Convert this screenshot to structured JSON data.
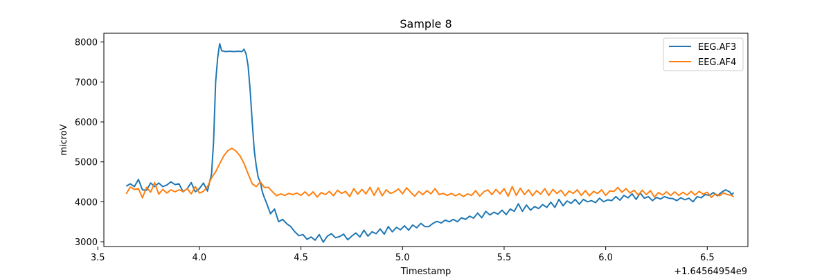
{
  "chart_data": {
    "type": "line",
    "title": "Sample 8",
    "xlabel": "Timestamp",
    "ylabel": "microV",
    "x_offset_label": "+1.64564954e9",
    "xlim": [
      3.53,
      6.7
    ],
    "ylim": [
      2880,
      8220
    ],
    "x_ticks": [
      3.5,
      4.0,
      4.5,
      5.0,
      5.5,
      6.0,
      6.5
    ],
    "x_tick_labels": [
      "3.5",
      "4.0",
      "4.5",
      "5.0",
      "5.5",
      "6.0",
      "6.5"
    ],
    "y_ticks": [
      3000,
      4000,
      5000,
      6000,
      7000,
      8000
    ],
    "y_tick_labels": [
      "3000",
      "4000",
      "5000",
      "6000",
      "7000",
      "8000"
    ],
    "grid": false,
    "legend_position": "upper right",
    "series": [
      {
        "name": "EEG.AF3",
        "color": "#1f77b4",
        "points": [
          [
            3.64,
            4390
          ],
          [
            3.66,
            4450
          ],
          [
            3.68,
            4380
          ],
          [
            3.7,
            4560
          ],
          [
            3.72,
            4300
          ],
          [
            3.74,
            4290
          ],
          [
            3.76,
            4470
          ],
          [
            3.78,
            4380
          ],
          [
            3.8,
            4470
          ],
          [
            3.82,
            4380
          ],
          [
            3.84,
            4420
          ],
          [
            3.86,
            4500
          ],
          [
            3.88,
            4430
          ],
          [
            3.9,
            4450
          ],
          [
            3.92,
            4250
          ],
          [
            3.94,
            4330
          ],
          [
            3.96,
            4480
          ],
          [
            3.98,
            4250
          ],
          [
            4.0,
            4330
          ],
          [
            4.02,
            4470
          ],
          [
            4.04,
            4270
          ],
          [
            4.06,
            4700
          ],
          [
            4.07,
            5500
          ],
          [
            4.08,
            7000
          ],
          [
            4.09,
            7600
          ],
          [
            4.1,
            7960
          ],
          [
            4.11,
            7780
          ],
          [
            4.13,
            7760
          ],
          [
            4.15,
            7770
          ],
          [
            4.17,
            7760
          ],
          [
            4.19,
            7770
          ],
          [
            4.21,
            7760
          ],
          [
            4.22,
            7820
          ],
          [
            4.23,
            7700
          ],
          [
            4.24,
            7400
          ],
          [
            4.25,
            6800
          ],
          [
            4.26,
            6000
          ],
          [
            4.27,
            5300
          ],
          [
            4.28,
            4900
          ],
          [
            4.29,
            4600
          ],
          [
            4.3,
            4500
          ],
          [
            4.31,
            4250
          ],
          [
            4.32,
            4100
          ],
          [
            4.33,
            3980
          ],
          [
            4.35,
            3700
          ],
          [
            4.37,
            3820
          ],
          [
            4.39,
            3500
          ],
          [
            4.41,
            3560
          ],
          [
            4.43,
            3450
          ],
          [
            4.45,
            3380
          ],
          [
            4.47,
            3250
          ],
          [
            4.49,
            3150
          ],
          [
            4.51,
            3180
          ],
          [
            4.53,
            3060
          ],
          [
            4.55,
            3120
          ],
          [
            4.57,
            3040
          ],
          [
            4.59,
            3180
          ],
          [
            4.61,
            2990
          ],
          [
            4.63,
            3140
          ],
          [
            4.65,
            3200
          ],
          [
            4.67,
            3100
          ],
          [
            4.69,
            3130
          ],
          [
            4.71,
            3190
          ],
          [
            4.73,
            3050
          ],
          [
            4.75,
            3140
          ],
          [
            4.77,
            3220
          ],
          [
            4.79,
            3120
          ],
          [
            4.81,
            3290
          ],
          [
            4.83,
            3140
          ],
          [
            4.85,
            3250
          ],
          [
            4.87,
            3200
          ],
          [
            4.89,
            3320
          ],
          [
            4.91,
            3190
          ],
          [
            4.93,
            3380
          ],
          [
            4.95,
            3250
          ],
          [
            4.97,
            3360
          ],
          [
            4.99,
            3300
          ],
          [
            5.01,
            3400
          ],
          [
            5.03,
            3290
          ],
          [
            5.05,
            3420
          ],
          [
            5.07,
            3350
          ],
          [
            5.09,
            3460
          ],
          [
            5.11,
            3380
          ],
          [
            5.13,
            3380
          ],
          [
            5.15,
            3460
          ],
          [
            5.17,
            3510
          ],
          [
            5.19,
            3470
          ],
          [
            5.21,
            3540
          ],
          [
            5.23,
            3500
          ],
          [
            5.25,
            3560
          ],
          [
            5.27,
            3500
          ],
          [
            5.29,
            3600
          ],
          [
            5.31,
            3560
          ],
          [
            5.33,
            3640
          ],
          [
            5.35,
            3590
          ],
          [
            5.37,
            3720
          ],
          [
            5.39,
            3600
          ],
          [
            5.41,
            3760
          ],
          [
            5.43,
            3670
          ],
          [
            5.45,
            3740
          ],
          [
            5.47,
            3690
          ],
          [
            5.49,
            3790
          ],
          [
            5.51,
            3680
          ],
          [
            5.53,
            3820
          ],
          [
            5.55,
            3760
          ],
          [
            5.57,
            3950
          ],
          [
            5.59,
            3760
          ],
          [
            5.61,
            3920
          ],
          [
            5.63,
            3790
          ],
          [
            5.65,
            3880
          ],
          [
            5.67,
            3830
          ],
          [
            5.69,
            3930
          ],
          [
            5.71,
            3860
          ],
          [
            5.73,
            3990
          ],
          [
            5.75,
            3860
          ],
          [
            5.77,
            4060
          ],
          [
            5.79,
            3900
          ],
          [
            5.81,
            4020
          ],
          [
            5.83,
            3960
          ],
          [
            5.85,
            4060
          ],
          [
            5.87,
            3940
          ],
          [
            5.89,
            4060
          ],
          [
            5.91,
            4000
          ],
          [
            5.93,
            4030
          ],
          [
            5.95,
            3980
          ],
          [
            5.97,
            4090
          ],
          [
            5.99,
            4000
          ],
          [
            6.01,
            4050
          ],
          [
            6.03,
            4030
          ],
          [
            6.05,
            4130
          ],
          [
            6.07,
            4040
          ],
          [
            6.09,
            4160
          ],
          [
            6.11,
            4100
          ],
          [
            6.13,
            4200
          ],
          [
            6.15,
            4060
          ],
          [
            6.17,
            4220
          ],
          [
            6.19,
            4090
          ],
          [
            6.21,
            4130
          ],
          [
            6.23,
            4030
          ],
          [
            6.25,
            4110
          ],
          [
            6.27,
            4070
          ],
          [
            6.29,
            4130
          ],
          [
            6.31,
            4090
          ],
          [
            6.33,
            4080
          ],
          [
            6.35,
            4030
          ],
          [
            6.37,
            4100
          ],
          [
            6.39,
            4050
          ],
          [
            6.41,
            4090
          ],
          [
            6.43,
            4000
          ],
          [
            6.45,
            4130
          ],
          [
            6.47,
            4100
          ],
          [
            6.49,
            4180
          ],
          [
            6.51,
            4160
          ],
          [
            6.53,
            4230
          ],
          [
            6.55,
            4150
          ],
          [
            6.57,
            4240
          ],
          [
            6.59,
            4300
          ],
          [
            6.61,
            4250
          ],
          [
            6.62,
            4180
          ],
          [
            6.63,
            4230
          ]
        ]
      },
      {
        "name": "EEG.AF4",
        "color": "#ff7f0e",
        "points": [
          [
            3.64,
            4200
          ],
          [
            3.66,
            4370
          ],
          [
            3.68,
            4310
          ],
          [
            3.7,
            4330
          ],
          [
            3.72,
            4100
          ],
          [
            3.74,
            4360
          ],
          [
            3.76,
            4240
          ],
          [
            3.78,
            4480
          ],
          [
            3.8,
            4190
          ],
          [
            3.82,
            4310
          ],
          [
            3.84,
            4220
          ],
          [
            3.86,
            4300
          ],
          [
            3.88,
            4250
          ],
          [
            3.9,
            4300
          ],
          [
            3.92,
            4260
          ],
          [
            3.94,
            4330
          ],
          [
            3.96,
            4200
          ],
          [
            3.98,
            4380
          ],
          [
            4.0,
            4220
          ],
          [
            4.02,
            4260
          ],
          [
            4.04,
            4380
          ],
          [
            4.06,
            4600
          ],
          [
            4.08,
            4750
          ],
          [
            4.1,
            4950
          ],
          [
            4.12,
            5150
          ],
          [
            4.14,
            5280
          ],
          [
            4.16,
            5340
          ],
          [
            4.18,
            5270
          ],
          [
            4.2,
            5150
          ],
          [
            4.22,
            4960
          ],
          [
            4.24,
            4700
          ],
          [
            4.26,
            4450
          ],
          [
            4.28,
            4380
          ],
          [
            4.3,
            4500
          ],
          [
            4.32,
            4360
          ],
          [
            4.34,
            4360
          ],
          [
            4.36,
            4250
          ],
          [
            4.38,
            4150
          ],
          [
            4.4,
            4200
          ],
          [
            4.42,
            4160
          ],
          [
            4.44,
            4210
          ],
          [
            4.46,
            4180
          ],
          [
            4.48,
            4220
          ],
          [
            4.5,
            4160
          ],
          [
            4.52,
            4250
          ],
          [
            4.54,
            4150
          ],
          [
            4.56,
            4250
          ],
          [
            4.58,
            4120
          ],
          [
            4.6,
            4230
          ],
          [
            4.62,
            4180
          ],
          [
            4.64,
            4260
          ],
          [
            4.66,
            4150
          ],
          [
            4.68,
            4290
          ],
          [
            4.7,
            4210
          ],
          [
            4.72,
            4260
          ],
          [
            4.74,
            4130
          ],
          [
            4.76,
            4330
          ],
          [
            4.78,
            4190
          ],
          [
            4.8,
            4310
          ],
          [
            4.82,
            4200
          ],
          [
            4.84,
            4360
          ],
          [
            4.86,
            4160
          ],
          [
            4.88,
            4350
          ],
          [
            4.9,
            4150
          ],
          [
            4.92,
            4300
          ],
          [
            4.94,
            4210
          ],
          [
            4.96,
            4250
          ],
          [
            4.98,
            4320
          ],
          [
            5.0,
            4200
          ],
          [
            5.02,
            4350
          ],
          [
            5.04,
            4240
          ],
          [
            5.06,
            4140
          ],
          [
            5.08,
            4260
          ],
          [
            5.1,
            4180
          ],
          [
            5.12,
            4280
          ],
          [
            5.14,
            4200
          ],
          [
            5.16,
            4330
          ],
          [
            5.18,
            4180
          ],
          [
            5.2,
            4210
          ],
          [
            5.22,
            4160
          ],
          [
            5.24,
            4210
          ],
          [
            5.26,
            4150
          ],
          [
            5.28,
            4200
          ],
          [
            5.3,
            4130
          ],
          [
            5.32,
            4200
          ],
          [
            5.34,
            4160
          ],
          [
            5.36,
            4280
          ],
          [
            5.38,
            4140
          ],
          [
            5.4,
            4250
          ],
          [
            5.42,
            4300
          ],
          [
            5.44,
            4180
          ],
          [
            5.46,
            4310
          ],
          [
            5.48,
            4200
          ],
          [
            5.5,
            4330
          ],
          [
            5.52,
            4140
          ],
          [
            5.54,
            4380
          ],
          [
            5.56,
            4160
          ],
          [
            5.58,
            4340
          ],
          [
            5.6,
            4180
          ],
          [
            5.62,
            4300
          ],
          [
            5.64,
            4150
          ],
          [
            5.66,
            4280
          ],
          [
            5.68,
            4190
          ],
          [
            5.7,
            4330
          ],
          [
            5.72,
            4160
          ],
          [
            5.74,
            4310
          ],
          [
            5.76,
            4210
          ],
          [
            5.78,
            4290
          ],
          [
            5.8,
            4150
          ],
          [
            5.82,
            4270
          ],
          [
            5.84,
            4210
          ],
          [
            5.86,
            4300
          ],
          [
            5.88,
            4160
          ],
          [
            5.9,
            4280
          ],
          [
            5.92,
            4150
          ],
          [
            5.94,
            4260
          ],
          [
            5.96,
            4210
          ],
          [
            5.98,
            4300
          ],
          [
            6.0,
            4160
          ],
          [
            6.02,
            4270
          ],
          [
            6.04,
            4260
          ],
          [
            6.06,
            4360
          ],
          [
            6.08,
            4240
          ],
          [
            6.1,
            4330
          ],
          [
            6.12,
            4220
          ],
          [
            6.14,
            4290
          ],
          [
            6.16,
            4170
          ],
          [
            6.18,
            4290
          ],
          [
            6.2,
            4180
          ],
          [
            6.22,
            4280
          ],
          [
            6.24,
            4120
          ],
          [
            6.26,
            4230
          ],
          [
            6.28,
            4170
          ],
          [
            6.3,
            4250
          ],
          [
            6.32,
            4160
          ],
          [
            6.34,
            4250
          ],
          [
            6.36,
            4160
          ],
          [
            6.38,
            4240
          ],
          [
            6.4,
            4170
          ],
          [
            6.42,
            4260
          ],
          [
            6.44,
            4170
          ],
          [
            6.46,
            4260
          ],
          [
            6.48,
            4190
          ],
          [
            6.5,
            4240
          ],
          [
            6.52,
            4110
          ],
          [
            6.54,
            4200
          ],
          [
            6.56,
            4150
          ],
          [
            6.58,
            4220
          ],
          [
            6.6,
            4180
          ],
          [
            6.62,
            4160
          ],
          [
            6.63,
            4120
          ]
        ]
      }
    ]
  }
}
